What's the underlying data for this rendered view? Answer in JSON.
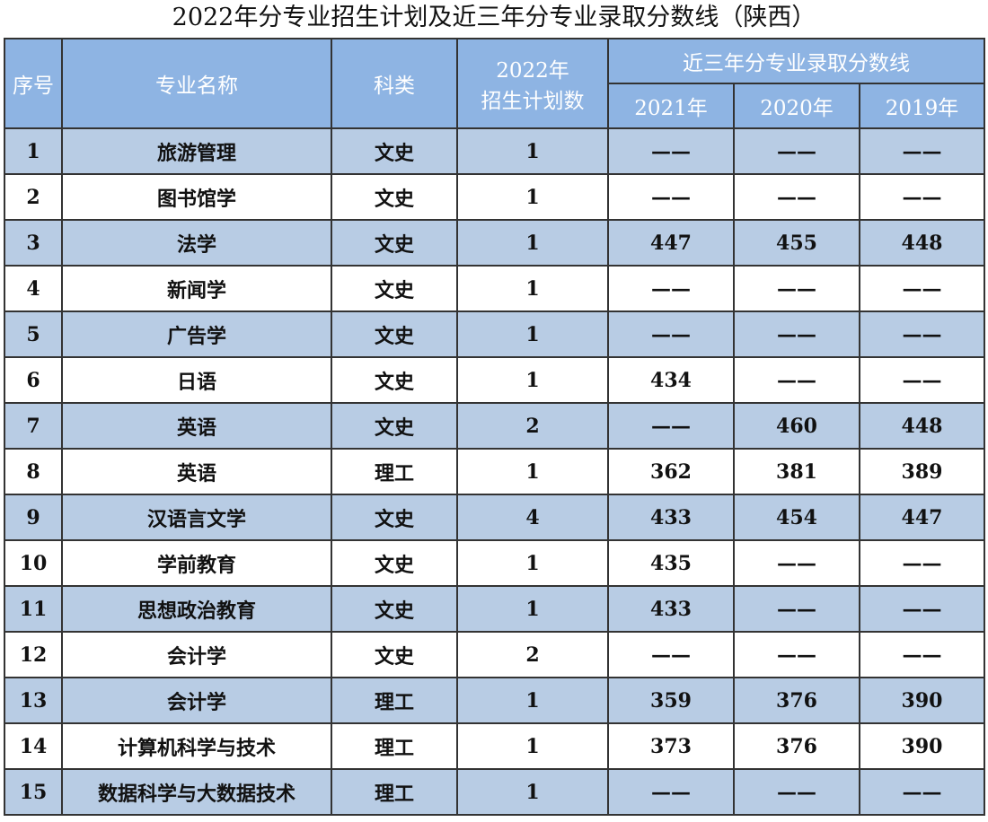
{
  "title": "2022年分专业招生计划及近三年分专业录取分数线（陕西）",
  "headers": {
    "index": "序号",
    "major": "专业名称",
    "category": "科类",
    "plan_line1": "2022年",
    "plan_line2": "招生计划数",
    "scores_group": "近三年分专业录取分数线",
    "y2021": "2021年",
    "y2020": "2020年",
    "y2019": "2019年"
  },
  "colors": {
    "header_bg": "#8eb4e3",
    "odd_row_bg": "#b8cce4"
  },
  "rows": [
    {
      "no": "1",
      "major": "旅游管理",
      "cat": "文史",
      "plan": "1",
      "s2021": "——",
      "s2020": "——",
      "s2019": "——"
    },
    {
      "no": "2",
      "major": "图书馆学",
      "cat": "文史",
      "plan": "1",
      "s2021": "——",
      "s2020": "——",
      "s2019": "——"
    },
    {
      "no": "3",
      "major": "法学",
      "cat": "文史",
      "plan": "1",
      "s2021": "447",
      "s2020": "455",
      "s2019": "448"
    },
    {
      "no": "4",
      "major": "新闻学",
      "cat": "文史",
      "plan": "1",
      "s2021": "——",
      "s2020": "——",
      "s2019": "——"
    },
    {
      "no": "5",
      "major": "广告学",
      "cat": "文史",
      "plan": "1",
      "s2021": "——",
      "s2020": "——",
      "s2019": "——"
    },
    {
      "no": "6",
      "major": "日语",
      "cat": "文史",
      "plan": "1",
      "s2021": "434",
      "s2020": "——",
      "s2019": "——"
    },
    {
      "no": "7",
      "major": "英语",
      "cat": "文史",
      "plan": "2",
      "s2021": "——",
      "s2020": "460",
      "s2019": "448"
    },
    {
      "no": "8",
      "major": "英语",
      "cat": "理工",
      "plan": "1",
      "s2021": "362",
      "s2020": "381",
      "s2019": "389"
    },
    {
      "no": "9",
      "major": "汉语言文学",
      "cat": "文史",
      "plan": "4",
      "s2021": "433",
      "s2020": "454",
      "s2019": "447"
    },
    {
      "no": "10",
      "major": "学前教育",
      "cat": "文史",
      "plan": "1",
      "s2021": "435",
      "s2020": "——",
      "s2019": "——"
    },
    {
      "no": "11",
      "major": "思想政治教育",
      "cat": "文史",
      "plan": "1",
      "s2021": "433",
      "s2020": "——",
      "s2019": "——"
    },
    {
      "no": "12",
      "major": "会计学",
      "cat": "文史",
      "plan": "2",
      "s2021": "——",
      "s2020": "——",
      "s2019": "——"
    },
    {
      "no": "13",
      "major": "会计学",
      "cat": "理工",
      "plan": "1",
      "s2021": "359",
      "s2020": "376",
      "s2019": "390"
    },
    {
      "no": "14",
      "major": "计算机科学与技术",
      "cat": "理工",
      "plan": "1",
      "s2021": "373",
      "s2020": "376",
      "s2019": "390"
    },
    {
      "no": "15",
      "major": "数据科学与大数据技术",
      "cat": "理工",
      "plan": "1",
      "s2021": "——",
      "s2020": "——",
      "s2019": "——"
    }
  ]
}
